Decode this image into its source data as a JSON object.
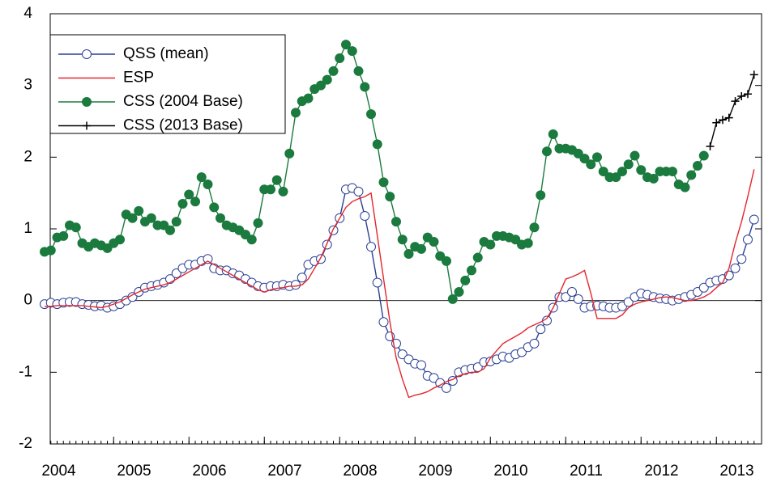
{
  "chart_data": {
    "type": "line",
    "categories": [
      null,
      null,
      "2004",
      null,
      null,
      null,
      null,
      null,
      null,
      null,
      null,
      null,
      null,
      null,
      "2005",
      null,
      null,
      null,
      null,
      null,
      null,
      null,
      null,
      null,
      null,
      null,
      "2006",
      null,
      null,
      null,
      null,
      null,
      null,
      null,
      null,
      null,
      null,
      null,
      "2007",
      null,
      null,
      null,
      null,
      null,
      null,
      null,
      null,
      null,
      null,
      null,
      "2008",
      null,
      null,
      null,
      null,
      null,
      null,
      null,
      null,
      null,
      null,
      null,
      "2009",
      null,
      null,
      null,
      null,
      null,
      null,
      null,
      null,
      null,
      null,
      null,
      "2010",
      null,
      null,
      null,
      null,
      null,
      null,
      null,
      null,
      null,
      null,
      null,
      "2011",
      null,
      null,
      null,
      null,
      null,
      null,
      null,
      null,
      null,
      null,
      null,
      "2012",
      null,
      null,
      null,
      null,
      null,
      null,
      null,
      null,
      null,
      null,
      null,
      "2013",
      null,
      null,
      null
    ],
    "series": [
      {
        "name": "QSS (mean)",
        "color": "#2b3f94",
        "marker": "circle-open",
        "values": [
          -0.05,
          -0.03,
          -0.05,
          -0.03,
          -0.02,
          -0.02,
          -0.05,
          -0.06,
          -0.08,
          -0.07,
          -0.1,
          -0.08,
          -0.05,
          0.0,
          0.05,
          0.12,
          0.18,
          0.2,
          0.22,
          0.25,
          0.3,
          0.38,
          0.45,
          0.5,
          0.5,
          0.55,
          0.58,
          0.45,
          0.42,
          0.42,
          0.38,
          0.35,
          0.3,
          0.25,
          0.2,
          0.18,
          0.2,
          0.2,
          0.22,
          0.2,
          0.22,
          0.32,
          0.5,
          0.55,
          0.58,
          0.78,
          0.98,
          1.15,
          1.55,
          1.57,
          1.52,
          1.18,
          0.75,
          0.25,
          -0.3,
          -0.5,
          -0.6,
          -0.75,
          -0.82,
          -0.88,
          -0.9,
          -1.05,
          -1.08,
          -1.15,
          -1.22,
          -1.12,
          -1.0,
          -0.97,
          -0.95,
          -0.93,
          -0.86,
          -0.85,
          -0.82,
          -0.78,
          -0.8,
          -0.75,
          -0.72,
          -0.65,
          -0.6,
          -0.4,
          -0.28,
          -0.1,
          0.05,
          0.05,
          0.12,
          0.02,
          -0.1,
          -0.08,
          -0.07,
          -0.08,
          -0.1,
          -0.1,
          -0.08,
          -0.02,
          0.05,
          0.1,
          0.08,
          0.05,
          0.03,
          0.02,
          0.0,
          0.02,
          0.05,
          0.08,
          0.12,
          0.18,
          0.25,
          0.28,
          0.3,
          0.35,
          0.45,
          0.58,
          0.85,
          1.13
        ]
      },
      {
        "name": "ESP",
        "color": "#e3262c",
        "marker": "none",
        "values": [
          -0.08,
          -0.08,
          -0.07,
          -0.07,
          -0.07,
          -0.07,
          -0.07,
          -0.08,
          -0.09,
          -0.1,
          -0.08,
          -0.05,
          -0.02,
          0.03,
          0.08,
          0.12,
          0.16,
          0.18,
          0.2,
          0.22,
          0.25,
          0.3,
          0.35,
          0.4,
          0.45,
          0.5,
          0.55,
          0.5,
          0.45,
          0.4,
          0.35,
          0.3,
          0.25,
          0.2,
          0.15,
          0.12,
          0.15,
          0.17,
          0.18,
          0.2,
          0.2,
          0.22,
          0.3,
          0.45,
          0.6,
          0.8,
          1.0,
          1.15,
          1.3,
          1.38,
          1.42,
          1.45,
          1.5,
          0.9,
          0.3,
          -0.3,
          -0.8,
          -1.1,
          -1.35,
          -1.32,
          -1.3,
          -1.27,
          -1.22,
          -1.18,
          -1.13,
          -1.1,
          -1.05,
          -1.02,
          -1.0,
          -1.0,
          -0.95,
          -0.8,
          -0.7,
          -0.6,
          -0.55,
          -0.5,
          -0.45,
          -0.38,
          -0.34,
          -0.3,
          -0.25,
          -0.1,
          0.1,
          0.3,
          0.33,
          0.37,
          0.42,
          0.1,
          -0.25,
          -0.25,
          -0.25,
          -0.25,
          -0.2,
          -0.1,
          -0.05,
          -0.02,
          0.0,
          0.02,
          0.04,
          0.05,
          0.04,
          0.02,
          0.0,
          0.0,
          0.02,
          0.05,
          0.1,
          0.18,
          0.25,
          0.45,
          0.8,
          1.1,
          1.45,
          1.83
        ]
      },
      {
        "name": "CSS (2004 Base)",
        "color": "#1b7a3e",
        "marker": "circle",
        "values": [
          0.68,
          0.7,
          0.88,
          0.9,
          1.05,
          1.02,
          0.8,
          0.75,
          0.8,
          0.77,
          0.73,
          0.8,
          0.85,
          1.2,
          1.15,
          1.25,
          1.1,
          1.15,
          1.05,
          1.05,
          0.98,
          1.1,
          1.35,
          1.48,
          1.38,
          1.72,
          1.62,
          1.3,
          1.15,
          1.05,
          1.02,
          0.98,
          0.92,
          0.85,
          1.08,
          1.55,
          1.55,
          1.68,
          1.52,
          2.05,
          2.62,
          2.78,
          2.82,
          2.95,
          3.0,
          3.08,
          3.2,
          3.38,
          3.57,
          3.48,
          3.2,
          2.98,
          2.6,
          2.18,
          1.65,
          1.45,
          1.1,
          0.85,
          0.65,
          0.75,
          0.72,
          0.88,
          0.82,
          0.62,
          0.55,
          0.02,
          0.12,
          0.28,
          0.42,
          0.6,
          0.82,
          0.78,
          0.9,
          0.9,
          0.88,
          0.85,
          0.78,
          0.8,
          1.02,
          1.47,
          2.08,
          2.32,
          2.12,
          2.12,
          2.1,
          2.05,
          1.98,
          1.9,
          2.0,
          1.8,
          1.72,
          1.72,
          1.8,
          1.9,
          2.02,
          1.82,
          1.72,
          1.7,
          1.8,
          1.8,
          1.8,
          1.62,
          1.58,
          1.75,
          1.88,
          2.02,
          null,
          null,
          null,
          null,
          null,
          null,
          null,
          null
        ]
      },
      {
        "name": "CSS (2013 Base)",
        "color": "#000000",
        "marker": "plus",
        "values": [
          null,
          null,
          null,
          null,
          null,
          null,
          null,
          null,
          null,
          null,
          null,
          null,
          null,
          null,
          null,
          null,
          null,
          null,
          null,
          null,
          null,
          null,
          null,
          null,
          null,
          null,
          null,
          null,
          null,
          null,
          null,
          null,
          null,
          null,
          null,
          null,
          null,
          null,
          null,
          null,
          null,
          null,
          null,
          null,
          null,
          null,
          null,
          null,
          null,
          null,
          null,
          null,
          null,
          null,
          null,
          null,
          null,
          null,
          null,
          null,
          null,
          null,
          null,
          null,
          null,
          null,
          null,
          null,
          null,
          null,
          null,
          null,
          null,
          null,
          null,
          null,
          null,
          null,
          null,
          null,
          null,
          null,
          null,
          null,
          null,
          null,
          null,
          null,
          null,
          null,
          null,
          null,
          null,
          null,
          null,
          null,
          null,
          null,
          null,
          null,
          null,
          null,
          null,
          null,
          null,
          null,
          2.15,
          2.48,
          2.52,
          2.55,
          2.78,
          2.85,
          2.88,
          3.15
        ]
      }
    ],
    "ylim": [
      -2,
      4
    ],
    "yticks": [
      -2,
      -1,
      0,
      1,
      2,
      3,
      4
    ],
    "zero_line": true,
    "legend": "upper-left"
  }
}
